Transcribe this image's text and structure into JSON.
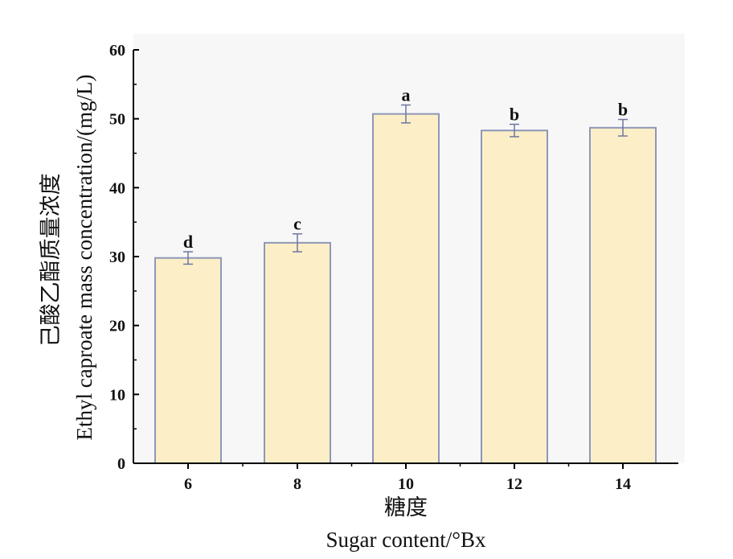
{
  "chart_data": {
    "type": "bar",
    "categories": [
      "6",
      "8",
      "10",
      "12",
      "14"
    ],
    "values": [
      29.8,
      32.0,
      50.7,
      48.3,
      48.7
    ],
    "errors": [
      0.9,
      1.3,
      1.3,
      0.9,
      1.2
    ],
    "significance": [
      "d",
      "c",
      "a",
      "b",
      "b"
    ],
    "xlabel_cn": "糖度",
    "xlabel": "Sugar content/°Bx",
    "ylabel_cn": "己酸乙酯质量浓度",
    "ylabel": "Ethyl caproate mass concentration/(mg/L)",
    "ylim": [
      0,
      60
    ],
    "yticks": [
      0,
      10,
      20,
      30,
      40,
      50,
      60
    ],
    "bar_color": "#fcefc7",
    "bar_edge_color": "#8f97b8",
    "plot_bg": "#f7f7f7",
    "grid": false,
    "legend": "none"
  }
}
